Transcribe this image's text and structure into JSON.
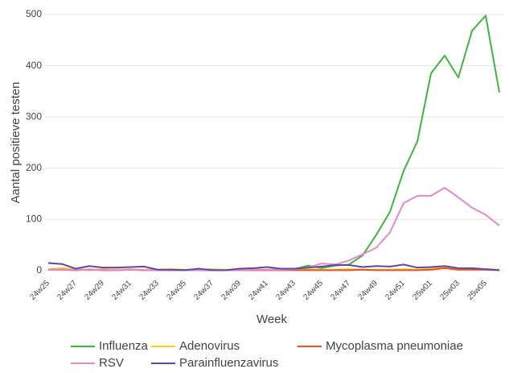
{
  "chart_data": {
    "type": "line",
    "y_label": "Aantal positieve testen",
    "x_label": "Week",
    "categories": [
      "24w25",
      null,
      "24w27",
      null,
      "24w29",
      null,
      "24w31",
      null,
      "24w33",
      null,
      "24w35",
      null,
      "24w37",
      null,
      "24w39",
      null,
      "24w41",
      null,
      "24w43",
      null,
      "24w45",
      null,
      "24w47",
      null,
      "24w49",
      null,
      "24w51",
      null,
      "25w01",
      null,
      "25w03",
      null,
      "25w05",
      null
    ],
    "ylim": [
      0,
      500
    ],
    "yticks": [
      0,
      100,
      200,
      300,
      400,
      500
    ],
    "grid": true,
    "legend": "bottom",
    "series": [
      {
        "name": "Influenza",
        "color": "#3db83a",
        "values": [
          2,
          2,
          3,
          2,
          2,
          2,
          2,
          1,
          2,
          2,
          1,
          2,
          2,
          1,
          2,
          2,
          2,
          3,
          3,
          10,
          5,
          10,
          12,
          30,
          70,
          115,
          195,
          252,
          385,
          420,
          377,
          468,
          498,
          348
        ]
      },
      {
        "name": "Adenovirus",
        "color": "#f2d21b",
        "values": [
          3,
          5,
          3,
          2,
          3,
          2,
          3,
          2,
          2,
          3,
          2,
          2,
          3,
          2,
          2,
          3,
          2,
          2,
          2,
          3,
          2,
          2,
          3,
          2,
          2,
          2,
          3,
          2,
          4,
          6,
          3,
          4,
          3,
          2
        ]
      },
      {
        "name": "Mycoplasma pneumoniae",
        "color": "#e8531f",
        "values": [
          2,
          2,
          1,
          2,
          1,
          1,
          2,
          1,
          1,
          1,
          1,
          1,
          1,
          1,
          1,
          1,
          1,
          1,
          1,
          1,
          1,
          1,
          1,
          2,
          1,
          1,
          1,
          1,
          2,
          5,
          2,
          2,
          2,
          1
        ]
      },
      {
        "name": "RSV",
        "color": "#e58ac8",
        "values": [
          2,
          2,
          2,
          1,
          2,
          1,
          2,
          1,
          1,
          2,
          1,
          1,
          2,
          1,
          1,
          2,
          2,
          2,
          3,
          6,
          14,
          12,
          20,
          32,
          45,
          75,
          132,
          146,
          146,
          162,
          143,
          123,
          109,
          88
        ]
      },
      {
        "name": "Parainfluenzavirus",
        "color": "#5a4aa8",
        "values": [
          15,
          13,
          4,
          9,
          6,
          6,
          7,
          8,
          2,
          2,
          1,
          4,
          1,
          1,
          4,
          5,
          7,
          4,
          4,
          6,
          8,
          11,
          11,
          7,
          9,
          8,
          12,
          6,
          7,
          9,
          5,
          5,
          3,
          1
        ]
      }
    ]
  }
}
